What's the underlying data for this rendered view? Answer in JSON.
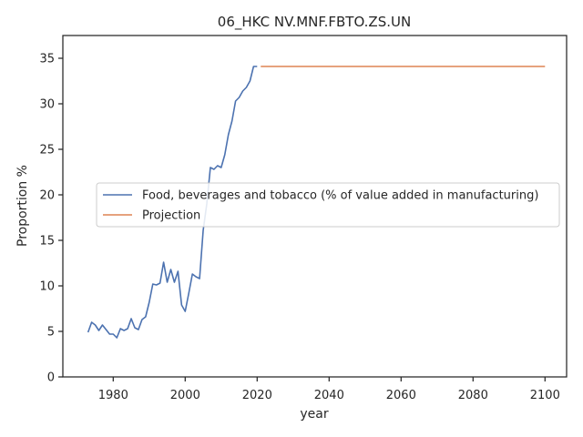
{
  "chart_data": {
    "type": "line",
    "title": "06_HKC NV.MNF.FBTO.ZS.UN",
    "xlabel": "year",
    "ylabel": "Proportion %",
    "xlim": [
      1966,
      2106
    ],
    "ylim": [
      0,
      37.5
    ],
    "xticks": [
      1980,
      2000,
      2020,
      2040,
      2060,
      2080,
      2100
    ],
    "yticks": [
      0,
      5,
      10,
      15,
      20,
      25,
      30,
      35
    ],
    "grid": false,
    "legend_position": "center-right",
    "series": [
      {
        "name": "Food, beverages and tobacco (% of value added in manufacturing)",
        "color": "#4c72b0",
        "x": [
          1973,
          1974,
          1975,
          1976,
          1977,
          1978,
          1979,
          1980,
          1981,
          1982,
          1983,
          1984,
          1985,
          1986,
          1987,
          1988,
          1989,
          1990,
          1991,
          1992,
          1993,
          1994,
          1995,
          1996,
          1997,
          1998,
          1999,
          2000,
          2001,
          2002,
          2003,
          2004,
          2005,
          2006,
          2007,
          2008,
          2009,
          2010,
          2011,
          2012,
          2013,
          2014,
          2015,
          2016,
          2017,
          2018,
          2019,
          2020
        ],
        "y": [
          4.9,
          6.0,
          5.7,
          5.1,
          5.7,
          5.2,
          4.7,
          4.7,
          4.3,
          5.3,
          5.1,
          5.3,
          6.4,
          5.4,
          5.2,
          6.3,
          6.6,
          8.2,
          10.2,
          10.1,
          10.3,
          12.6,
          10.4,
          11.8,
          10.4,
          11.6,
          7.9,
          7.2,
          9.2,
          11.3,
          11.0,
          10.8,
          16.1,
          19.0,
          23.0,
          22.8,
          23.2,
          23.0,
          24.4,
          26.6,
          28.1,
          30.3,
          30.7,
          31.4,
          31.8,
          32.5,
          34.1,
          34.1
        ]
      },
      {
        "name": "Projection",
        "color": "#dd8452",
        "x": [
          2021,
          2100
        ],
        "y": [
          34.1,
          34.1
        ]
      }
    ]
  }
}
